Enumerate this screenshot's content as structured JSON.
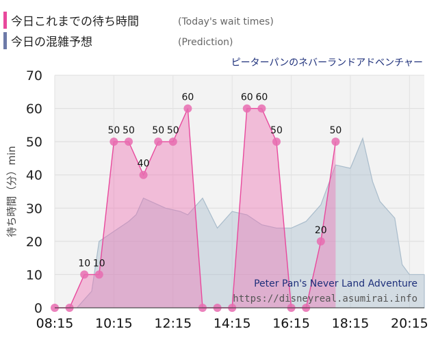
{
  "legend": [
    {
      "label": "今日これまでの待ち時間",
      "sub": "(Today's wait times)",
      "color": "#e8489c"
    },
    {
      "label": "今日の混雑予想",
      "sub": "(Prediction)",
      "color": "#6d7aa8"
    }
  ],
  "subtitle": "ピーターパンのネバーランドアドベンチャー",
  "credit": {
    "name": "Peter Pan's Never Land Adventure",
    "url": "https://disneyreal.asumirai.info"
  },
  "chart_data": {
    "type": "area",
    "ylabel": "待ち時間（分）min",
    "ylim": [
      0,
      70
    ],
    "yticks": [
      0,
      10,
      20,
      30,
      40,
      50,
      60,
      70
    ],
    "xlim": [
      "08:15",
      "20:45"
    ],
    "xticks": [
      "08:15",
      "10:15",
      "12:15",
      "14:15",
      "16:15",
      "18:15",
      "20:15"
    ],
    "grid": true,
    "series": [
      {
        "name": "今日これまでの待ち時間",
        "color": "#e8489c",
        "points": [
          {
            "x": "08:15",
            "y": 0
          },
          {
            "x": "08:45",
            "y": 0
          },
          {
            "x": "09:15",
            "y": 10
          },
          {
            "x": "09:45",
            "y": 10
          },
          {
            "x": "10:15",
            "y": 50
          },
          {
            "x": "10:45",
            "y": 50
          },
          {
            "x": "11:15",
            "y": 40
          },
          {
            "x": "11:45",
            "y": 50
          },
          {
            "x": "12:15",
            "y": 50
          },
          {
            "x": "12:45",
            "y": 60
          },
          {
            "x": "13:15",
            "y": 0
          },
          {
            "x": "13:45",
            "y": 0
          },
          {
            "x": "14:15",
            "y": 0
          },
          {
            "x": "14:45",
            "y": 60
          },
          {
            "x": "15:15",
            "y": 60
          },
          {
            "x": "15:45",
            "y": 50
          },
          {
            "x": "16:15",
            "y": 0
          },
          {
            "x": "16:45",
            "y": 0
          },
          {
            "x": "17:15",
            "y": 20
          },
          {
            "x": "17:45",
            "y": 50
          }
        ],
        "data_labels": [
          {
            "x": "09:15",
            "text": "10"
          },
          {
            "x": "09:45",
            "text": "10"
          },
          {
            "x": "10:15",
            "text": "50"
          },
          {
            "x": "10:45",
            "text": "50"
          },
          {
            "x": "11:15",
            "text": "40"
          },
          {
            "x": "11:45",
            "text": "50"
          },
          {
            "x": "12:15",
            "text": "50"
          },
          {
            "x": "12:45",
            "text": "60"
          },
          {
            "x": "14:45",
            "text": "60"
          },
          {
            "x": "15:15",
            "text": "60"
          },
          {
            "x": "15:45",
            "text": "50"
          },
          {
            "x": "17:15",
            "text": "20"
          },
          {
            "x": "17:45",
            "text": "50"
          }
        ]
      },
      {
        "name": "今日の混雑予想",
        "color": "#6d7aa8",
        "points": [
          {
            "x": "08:15",
            "y": 0
          },
          {
            "x": "09:00",
            "y": 0
          },
          {
            "x": "09:30",
            "y": 5
          },
          {
            "x": "09:45",
            "y": 20
          },
          {
            "x": "10:15",
            "y": 23
          },
          {
            "x": "10:45",
            "y": 26
          },
          {
            "x": "11:00",
            "y": 28
          },
          {
            "x": "11:15",
            "y": 33
          },
          {
            "x": "11:30",
            "y": 32
          },
          {
            "x": "12:00",
            "y": 30
          },
          {
            "x": "12:30",
            "y": 29
          },
          {
            "x": "12:45",
            "y": 28
          },
          {
            "x": "13:15",
            "y": 33
          },
          {
            "x": "13:45",
            "y": 24
          },
          {
            "x": "14:15",
            "y": 29
          },
          {
            "x": "14:45",
            "y": 28
          },
          {
            "x": "15:15",
            "y": 25
          },
          {
            "x": "15:45",
            "y": 24
          },
          {
            "x": "16:15",
            "y": 24
          },
          {
            "x": "16:45",
            "y": 26
          },
          {
            "x": "17:15",
            "y": 31
          },
          {
            "x": "17:45",
            "y": 43
          },
          {
            "x": "18:15",
            "y": 42
          },
          {
            "x": "18:40",
            "y": 51
          },
          {
            "x": "19:00",
            "y": 38
          },
          {
            "x": "19:15",
            "y": 32
          },
          {
            "x": "19:45",
            "y": 27
          },
          {
            "x": "20:00",
            "y": 13
          },
          {
            "x": "20:15",
            "y": 10
          },
          {
            "x": "20:45",
            "y": 10
          }
        ]
      }
    ]
  }
}
